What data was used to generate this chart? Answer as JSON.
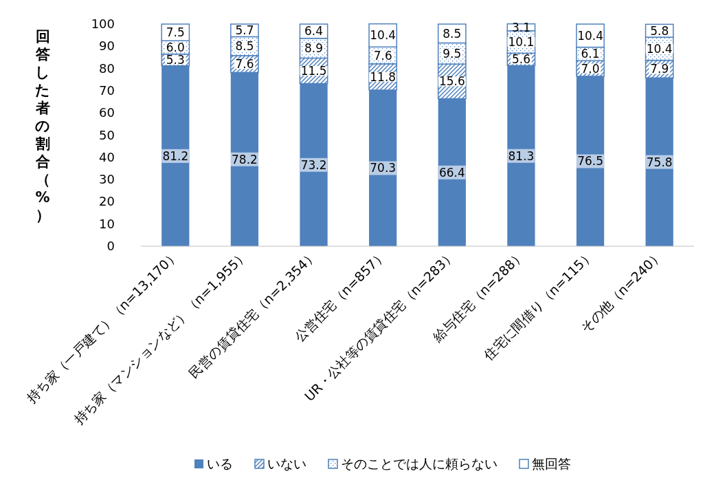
{
  "chart_data": {
    "type": "bar",
    "stacked": true,
    "ylabel": "回答した者の割合（%）",
    "categories": [
      "持ち家（一戸建て）（n=13,170）",
      "持ち家（マンションなど）（n=1,955）",
      "民営の賃貸住宅（n=2,354）",
      "公営住宅（n=857）",
      "UR・公社等の賃貸住宅（n=283）",
      "給与住宅（n=288）",
      "住宅に間借り（n=115）",
      "その他（n=240）"
    ],
    "series": [
      {
        "name": "いる",
        "color": "#4f81bd",
        "values": [
          81.2,
          78.2,
          73.2,
          70.3,
          66.4,
          81.3,
          76.5,
          75.8
        ],
        "value_labels": [
          "81.2",
          "78.2",
          "73.2",
          "70.3",
          "66.4",
          "81.3",
          "76.5",
          "75.8"
        ]
      },
      {
        "name": "いない",
        "color": "#4f81bd",
        "values": [
          5.3,
          7.6,
          11.5,
          11.8,
          15.6,
          5.6,
          7.0,
          7.9
        ],
        "value_labels": [
          "5.3",
          "7.6",
          "11.5",
          "11.8",
          "15.6",
          "5.6",
          "7.0",
          "7.9"
        ]
      },
      {
        "name": "そのことでは人に頼らない",
        "color": "#4f81bd",
        "values": [
          6.0,
          8.5,
          8.9,
          7.6,
          9.5,
          10.1,
          6.1,
          10.4
        ],
        "value_labels": [
          "6.0",
          "8.5",
          "8.9",
          "7.6",
          "9.5",
          "10.1",
          "6.1",
          "10.4"
        ]
      },
      {
        "name": "無回答",
        "color": "#4f81bd",
        "values": [
          7.5,
          5.7,
          6.4,
          10.4,
          8.5,
          3.1,
          10.4,
          5.8
        ],
        "value_labels": [
          "7.5",
          "5.7",
          "6.4",
          "10.4",
          "8.5",
          "3.1",
          "10.4",
          "5.8"
        ]
      }
    ],
    "ylim": [
      0,
      100
    ],
    "yticks": [
      0,
      10,
      20,
      30,
      40,
      50,
      60,
      70,
      80,
      90,
      100
    ],
    "grid": false,
    "legend": "bottom"
  }
}
